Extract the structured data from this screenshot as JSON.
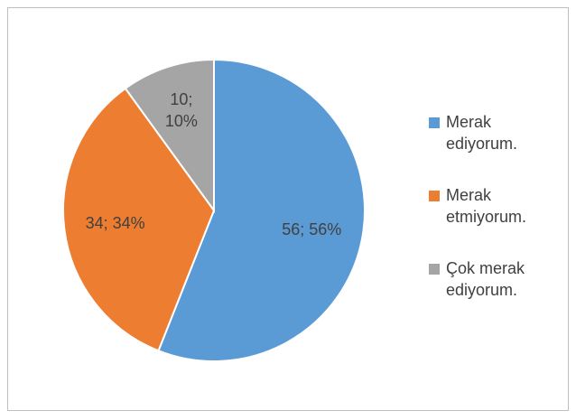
{
  "chart_data": {
    "type": "pie",
    "categories": [
      "Merak ediyorum.",
      "Merak etmiyorum.",
      "Çok merak ediyorum."
    ],
    "values": [
      56,
      34,
      10
    ],
    "value_labels": [
      "56; 56%",
      "34; 34%",
      "10; 10%"
    ],
    "colors": [
      "#5b9bd5",
      "#ed7d31",
      "#a5a5a5"
    ],
    "legend": "right"
  }
}
